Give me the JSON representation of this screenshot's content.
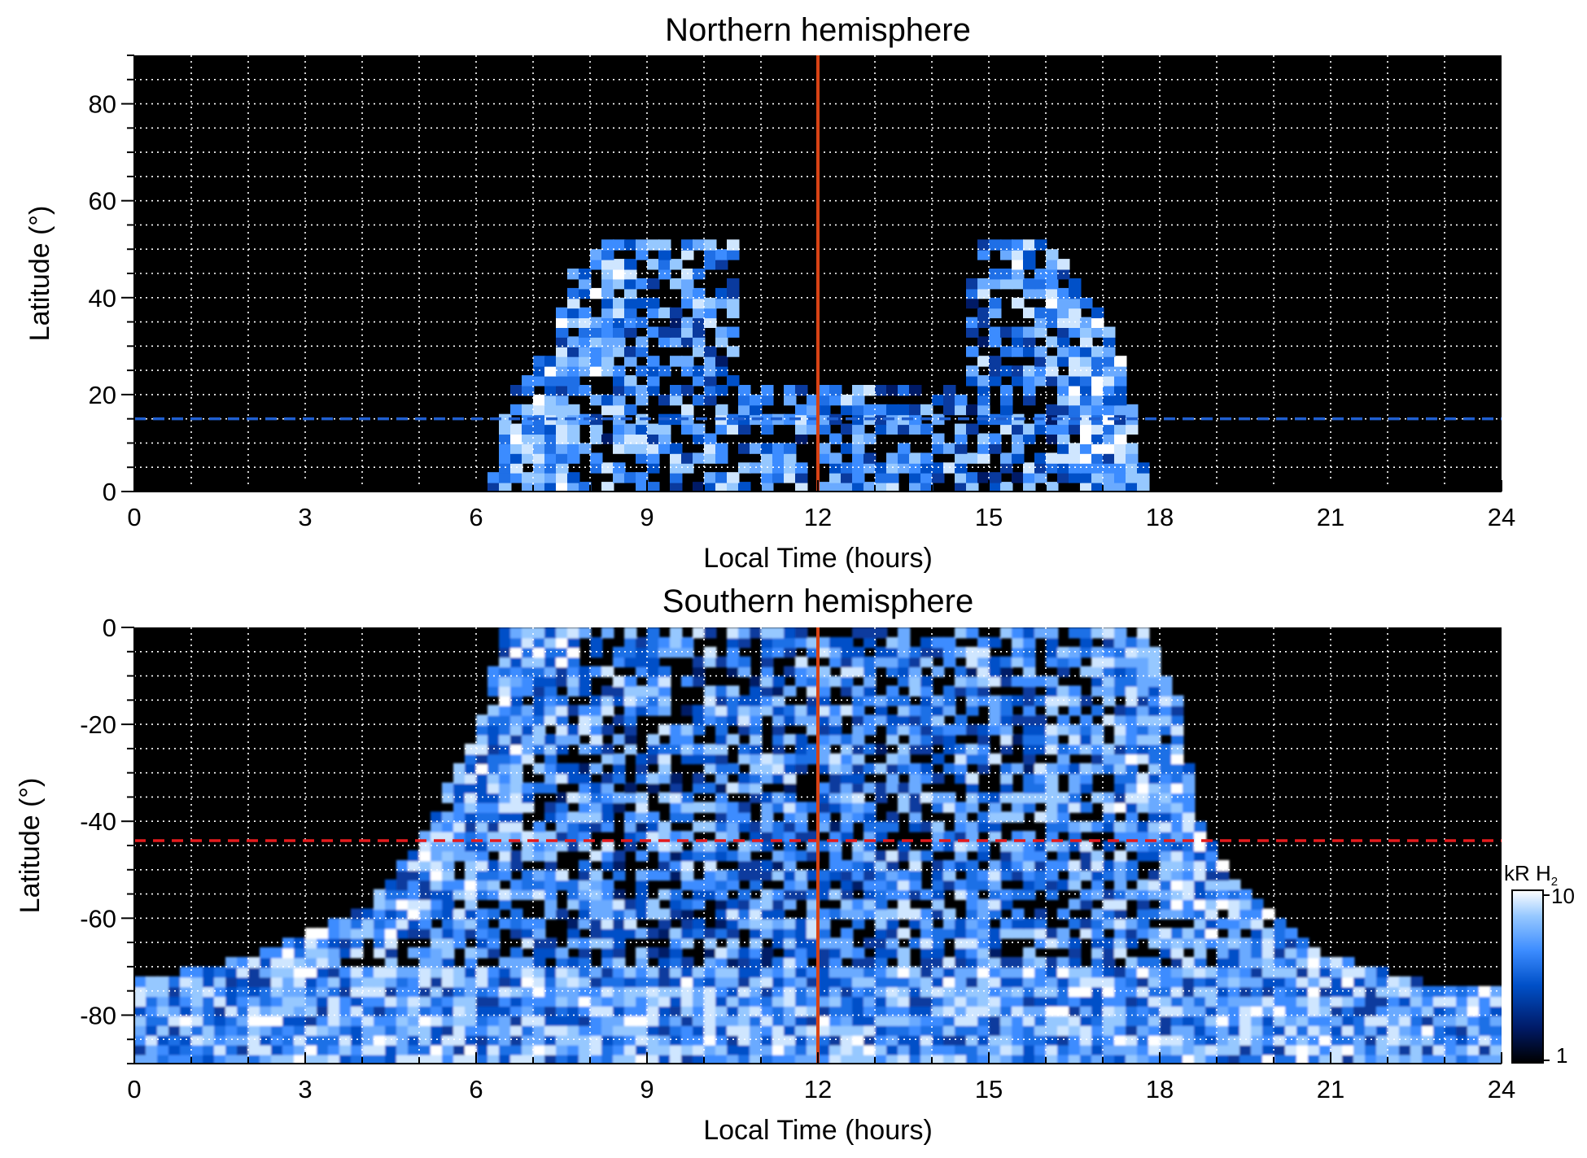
{
  "chart_data": [
    {
      "type": "heatmap",
      "title": "Northern hemisphere",
      "xlabel": "Local Time (hours)",
      "ylabel": "Latitude (°)",
      "xlim": [
        0,
        24
      ],
      "ylim": [
        0,
        90
      ],
      "xticks": [
        0,
        3,
        6,
        9,
        12,
        15,
        18,
        21,
        24
      ],
      "yticks": [
        0,
        20,
        40,
        60,
        80
      ],
      "grid": true,
      "noon_line_x": 12,
      "reference_latitude": 15,
      "reference_color": "#1f5fd0",
      "emission_region": {
        "dawn_edge": [
          [
            6.2,
            0
          ],
          [
            6.6,
            20
          ],
          [
            7.3,
            30
          ],
          [
            7.7,
            46
          ],
          [
            8.2,
            52
          ]
        ],
        "dusk_edge": [
          [
            15.6,
            53
          ],
          [
            16.2,
            50
          ],
          [
            17.2,
            33
          ],
          [
            17.6,
            12
          ],
          [
            17.8,
            0
          ]
        ],
        "midday_top_latitude": 22
      }
    },
    {
      "type": "heatmap",
      "title": "Southern hemisphere",
      "xlabel": "Local Time (hours)",
      "ylabel": "Latitude (°)",
      "xlim": [
        0,
        24
      ],
      "ylim": [
        -90,
        0
      ],
      "xticks": [
        0,
        3,
        6,
        9,
        12,
        15,
        18,
        21,
        24
      ],
      "yticks": [
        0,
        -20,
        -40,
        -60,
        -80
      ],
      "grid": true,
      "noon_line_x": 12,
      "reference_latitude": -44,
      "reference_color": "#e41a1c",
      "emission_region": {
        "dawn_edge": [
          [
            0,
            -90
          ],
          [
            0,
            -73
          ],
          [
            2,
            -68
          ],
          [
            4,
            -58
          ],
          [
            5,
            -44
          ],
          [
            6,
            -22
          ],
          [
            6.5,
            0
          ]
        ],
        "dusk_edge": [
          [
            17.7,
            0
          ],
          [
            18.3,
            -15
          ],
          [
            18.7,
            -40
          ],
          [
            19.5,
            -55
          ],
          [
            21,
            -68
          ],
          [
            23,
            -74
          ],
          [
            24,
            -75
          ],
          [
            24,
            -90
          ]
        ]
      }
    }
  ],
  "colorbar": {
    "unit_main": "kR H",
    "unit_sub": "2",
    "min_label": "1",
    "max_label": "10",
    "scale": "log",
    "colors": [
      "#000000",
      "#001a66",
      "#0050c8",
      "#3c8cff",
      "#96c8ff",
      "#ffffff"
    ]
  },
  "noon_line_color": "#d84315"
}
